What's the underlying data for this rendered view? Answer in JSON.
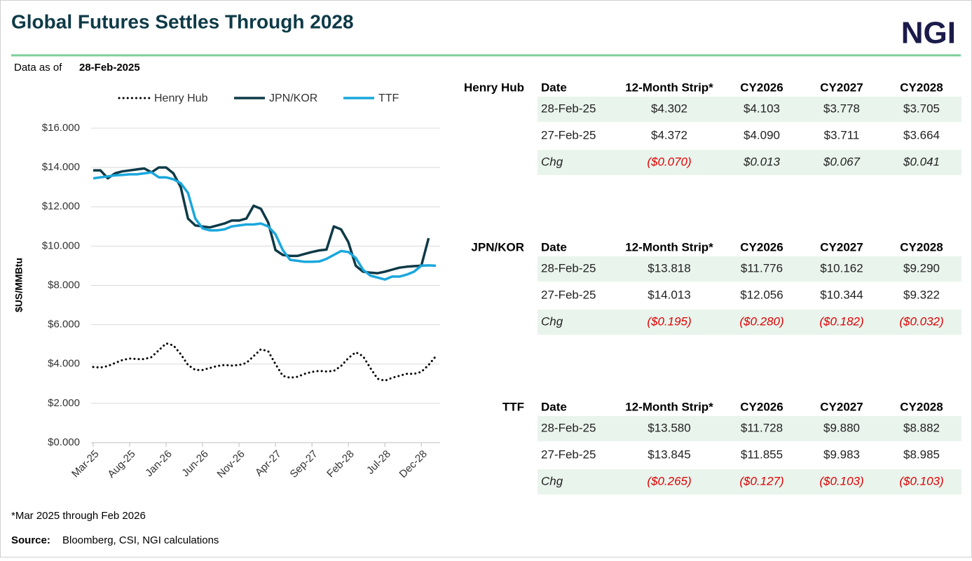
{
  "header": {
    "title": "Global Futures Settles Through 2028",
    "logo": "NGI",
    "as_of_label": "Data as of",
    "as_of_date": "28-Feb-2025"
  },
  "chart_data": {
    "type": "line",
    "y_label": "$US/MMBtu",
    "categories": [
      "Mar-25",
      null,
      null,
      null,
      null,
      "Aug-25",
      null,
      null,
      null,
      null,
      "Jan-26",
      null,
      null,
      null,
      null,
      "Jun-26",
      null,
      null,
      null,
      null,
      "Nov-26",
      null,
      null,
      null,
      null,
      "Apr-27",
      null,
      null,
      null,
      null,
      "Sep-27",
      null,
      null,
      null,
      null,
      "Feb-28",
      null,
      null,
      null,
      null,
      "Jul-28",
      null,
      null,
      null,
      null,
      "Dec-28",
      null,
      null
    ],
    "ylim": [
      0,
      16
    ],
    "yticks": [
      {
        "value": 0,
        "label": "$0.000"
      },
      {
        "value": 2,
        "label": "$2.000"
      },
      {
        "value": 4,
        "label": "$4.000"
      },
      {
        "value": 6,
        "label": "$6.000"
      },
      {
        "value": 8,
        "label": "$8.000"
      },
      {
        "value": 10,
        "label": "$10.000"
      },
      {
        "value": 12,
        "label": "$12.000"
      },
      {
        "value": 14,
        "label": "$14.000"
      },
      {
        "value": 16,
        "label": "$16.000"
      }
    ],
    "grid": true,
    "legend": "top",
    "series": [
      {
        "name": "Henry Hub",
        "color": "#000000",
        "dash": "dotted",
        "values": [
          3.85,
          3.82,
          3.9,
          4.05,
          4.2,
          4.28,
          4.25,
          4.25,
          4.35,
          4.7,
          5.05,
          4.95,
          4.5,
          3.95,
          3.7,
          3.7,
          3.8,
          3.9,
          3.95,
          3.92,
          3.95,
          4.05,
          4.4,
          4.75,
          4.65,
          4.0,
          3.4,
          3.3,
          3.35,
          3.5,
          3.6,
          3.65,
          3.62,
          3.65,
          3.9,
          4.3,
          4.6,
          4.4,
          3.8,
          3.25,
          3.15,
          3.3,
          3.4,
          3.5,
          3.5,
          3.6,
          3.95,
          4.4
        ]
      },
      {
        "name": "JPN/KOR",
        "color": "#0e3a47",
        "dash": "solid",
        "values": [
          13.85,
          13.85,
          13.45,
          13.7,
          13.8,
          13.85,
          13.9,
          13.95,
          13.75,
          14.0,
          14.0,
          13.7,
          13.0,
          11.4,
          11.05,
          11.0,
          10.95,
          11.05,
          11.15,
          11.3,
          11.3,
          11.4,
          12.05,
          11.9,
          11.2,
          9.8,
          9.55,
          9.5,
          9.5,
          9.6,
          9.7,
          9.78,
          9.82,
          11.0,
          10.85,
          10.2,
          9.0,
          8.7,
          8.65,
          8.62,
          8.7,
          8.8,
          8.9,
          8.95,
          8.98,
          9.0,
          10.4,
          null
        ]
      },
      {
        "name": "TTF",
        "color": "#1aa7dc",
        "dash": "solid",
        "values": [
          13.45,
          13.5,
          13.55,
          13.6,
          13.62,
          13.65,
          13.65,
          13.7,
          13.75,
          13.5,
          13.5,
          13.4,
          13.2,
          12.7,
          11.4,
          10.9,
          10.8,
          10.8,
          10.85,
          11.0,
          11.05,
          11.1,
          11.1,
          11.15,
          11.0,
          10.6,
          9.8,
          9.3,
          9.25,
          9.2,
          9.2,
          9.22,
          9.35,
          9.55,
          9.75,
          9.7,
          9.4,
          8.8,
          8.5,
          8.4,
          8.3,
          8.45,
          8.45,
          8.55,
          8.7,
          9.0,
          9.02,
          9.0
        ]
      }
    ]
  },
  "tables": [
    {
      "name": "Henry Hub",
      "header": [
        "Date",
        "12-Month Strip*",
        "CY2026",
        "CY2027",
        "CY2028"
      ],
      "rows": [
        [
          "28-Feb-25",
          "$4.302",
          "$4.103",
          "$3.778",
          "$3.705"
        ],
        [
          "27-Feb-25",
          "$4.372",
          "$4.090",
          "$3.711",
          "$3.664"
        ],
        [
          "Chg",
          "($0.070)",
          "$0.013",
          "$0.067",
          "$0.041"
        ]
      ]
    },
    {
      "name": "JPN/KOR",
      "header": [
        "Date",
        "12-Month Strip*",
        "CY2026",
        "CY2027",
        "CY2028"
      ],
      "rows": [
        [
          "28-Feb-25",
          "$13.818",
          "$11.776",
          "$10.162",
          "$9.290"
        ],
        [
          "27-Feb-25",
          "$14.013",
          "$12.056",
          "$10.344",
          "$9.322"
        ],
        [
          "Chg",
          "($0.195)",
          "($0.280)",
          "($0.182)",
          "($0.032)"
        ]
      ]
    },
    {
      "name": "TTF",
      "header": [
        "Date",
        "12-Month Strip*",
        "CY2026",
        "CY2027",
        "CY2028"
      ],
      "rows": [
        [
          "28-Feb-25",
          "$13.580",
          "$11.728",
          "$9.880",
          "$8.882"
        ],
        [
          "27-Feb-25",
          "$13.845",
          "$11.855",
          "$9.983",
          "$8.985"
        ],
        [
          "Chg",
          "($0.265)",
          "($0.127)",
          "($0.103)",
          "($0.103)"
        ]
      ]
    }
  ],
  "footer": {
    "note": "*Mar 2025 through Feb 2026",
    "source_label": "Source:",
    "source": "Bloomberg, CSI, NGI calculations"
  }
}
